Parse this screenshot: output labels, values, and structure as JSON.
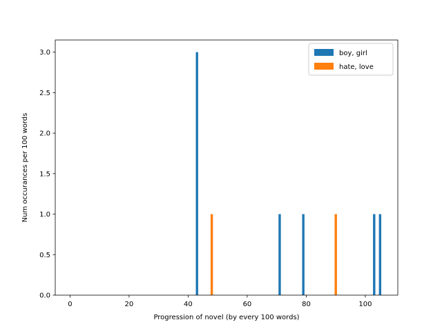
{
  "chart_data": {
    "type": "bar",
    "title": "",
    "xlabel": "Progression of novel (by every 100 words)",
    "ylabel": "Num occurances per 100 words",
    "xlim": [
      -5,
      111
    ],
    "ylim": [
      0,
      3.15
    ],
    "xticks": [
      0,
      20,
      40,
      60,
      80,
      100
    ],
    "yticks": [
      0.0,
      0.5,
      1.0,
      1.5,
      2.0,
      2.5,
      3.0
    ],
    "grid": false,
    "legend_position": "top-right",
    "bar_width": 0.8,
    "series": [
      {
        "name": "boy, girl",
        "color": "#1f77b4",
        "points": [
          {
            "x": 43,
            "y": 3
          },
          {
            "x": 71,
            "y": 1
          },
          {
            "x": 79,
            "y": 1
          },
          {
            "x": 103,
            "y": 1
          },
          {
            "x": 105,
            "y": 1
          }
        ]
      },
      {
        "name": "hate, love",
        "color": "#ff7f0e",
        "points": [
          {
            "x": 48,
            "y": 1
          },
          {
            "x": 90,
            "y": 1
          }
        ]
      }
    ]
  }
}
